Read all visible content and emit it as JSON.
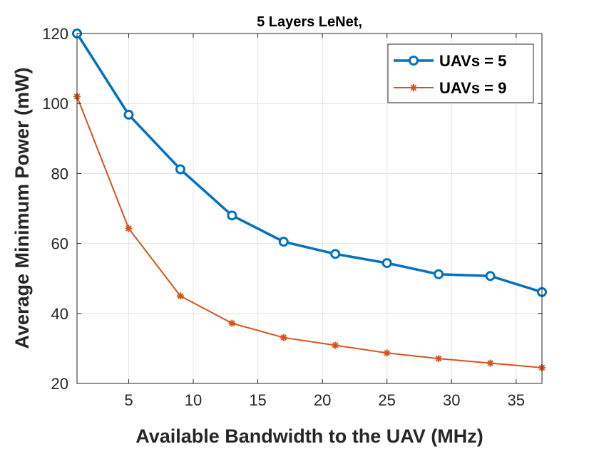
{
  "chart_data": {
    "type": "line",
    "title": "5 Layers LeNet,",
    "xlabel": "Available Bandwidth to the UAV (MHz)",
    "ylabel": "Average Minimum Power (mW)",
    "xlim": [
      1,
      37
    ],
    "ylim": [
      20,
      120
    ],
    "xticks": [
      5,
      10,
      15,
      20,
      25,
      30,
      35
    ],
    "yticks": [
      20,
      40,
      60,
      80,
      100,
      120
    ],
    "grid": true,
    "legend_position": "top-right",
    "x": [
      1,
      5,
      9,
      13,
      17,
      21,
      25,
      29,
      33,
      37
    ],
    "series": [
      {
        "name": "UAVs = 5",
        "color": "#0072BD",
        "marker": "circle",
        "values": [
          120,
          96.8,
          81.2,
          68.0,
          60.5,
          57.0,
          54.4,
          51.2,
          50.7,
          46.1
        ]
      },
      {
        "name": "UAVs = 9",
        "color": "#D95319",
        "marker": "asterisk",
        "values": [
          102,
          64.3,
          45.0,
          37.2,
          33.1,
          30.9,
          28.7,
          27.1,
          25.8,
          24.5
        ]
      }
    ]
  }
}
